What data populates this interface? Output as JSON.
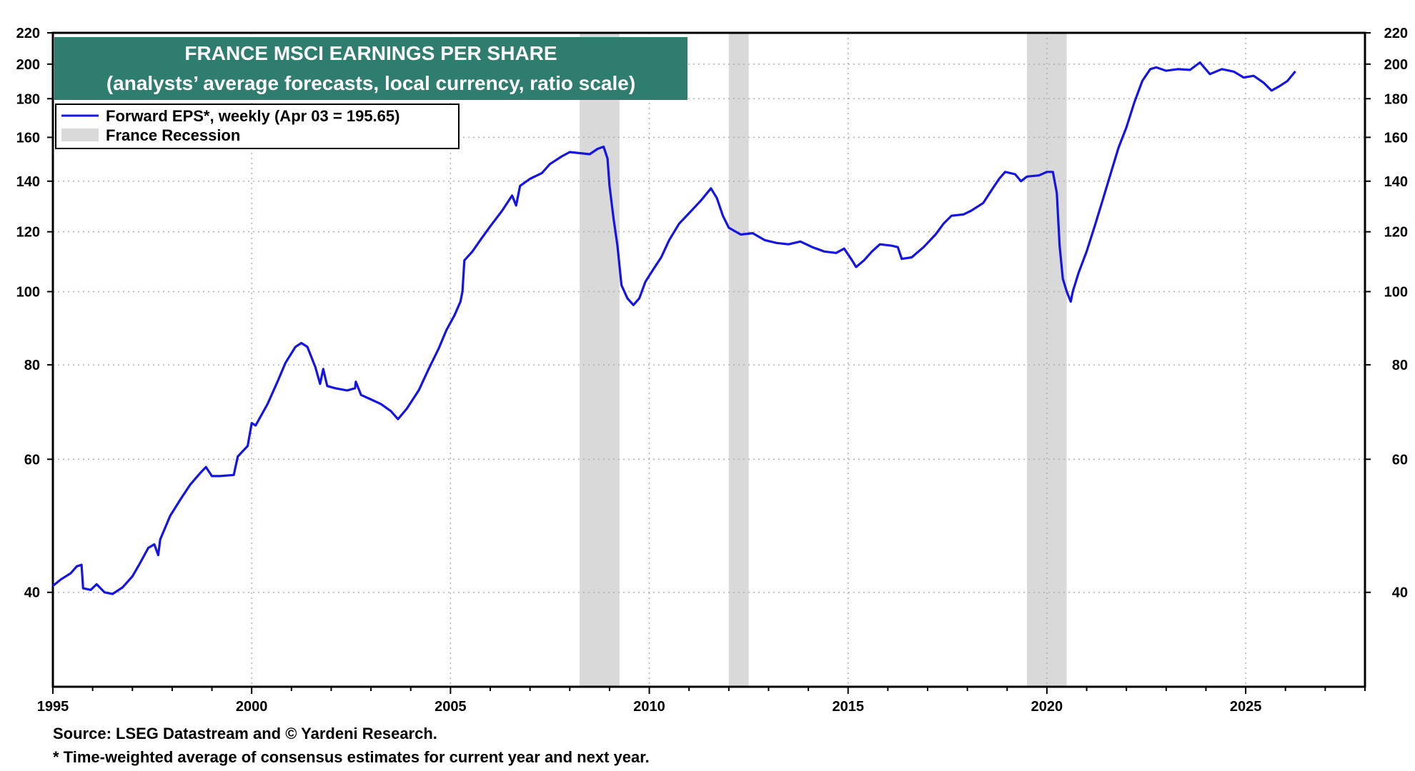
{
  "footnotes": {
    "source": "Source: LSEG Datastream and © Yardeni Research.",
    "note": "* Time-weighted average of consensus estimates for current year and next year."
  },
  "colors": {
    "series": "#1414e6",
    "recession": "#d9d9d9",
    "title_bg": "#2e7d6e",
    "title_text": "#ffffff",
    "grid": "#b0b0b0"
  },
  "chart_data": {
    "type": "line",
    "title": "FRANCE MSCI EARNINGS PER SHARE",
    "subtitle": "(analysts’ average forecasts, local currency, ratio scale)",
    "xlabel": "",
    "ylabel": "",
    "y_scale": "log",
    "xlim": [
      1995,
      2028
    ],
    "ylim": [
      30,
      220
    ],
    "x_ticks": [
      1995,
      2000,
      2005,
      2010,
      2015,
      2020,
      2025
    ],
    "y_ticks": [
      40,
      60,
      80,
      100,
      120,
      140,
      160,
      180,
      200,
      220
    ],
    "y_ticks_right": [
      40,
      60,
      80,
      100,
      120,
      140,
      160,
      180,
      200,
      220
    ],
    "grid": true,
    "legend_position": "top-left",
    "legend": [
      {
        "label": "Forward EPS*, weekly (Apr 03 = 195.65)",
        "kind": "line"
      },
      {
        "label": "France Recession",
        "kind": "box"
      }
    ],
    "recessions": [
      {
        "start": 2008.25,
        "end": 2009.25
      },
      {
        "start": 2012.0,
        "end": 2012.5
      },
      {
        "start": 2019.5,
        "end": 2020.5
      }
    ],
    "series": [
      {
        "name": "Forward EPS*, weekly",
        "points": [
          [
            1995.0,
            40.8
          ],
          [
            1995.2,
            41.6
          ],
          [
            1995.45,
            42.4
          ],
          [
            1995.6,
            43.3
          ],
          [
            1995.72,
            43.5
          ],
          [
            1995.76,
            40.5
          ],
          [
            1995.95,
            40.3
          ],
          [
            1996.1,
            41.0
          ],
          [
            1996.3,
            40.0
          ],
          [
            1996.5,
            39.8
          ],
          [
            1996.75,
            40.6
          ],
          [
            1997.0,
            42.0
          ],
          [
            1997.2,
            43.8
          ],
          [
            1997.4,
            45.8
          ],
          [
            1997.55,
            46.3
          ],
          [
            1997.65,
            44.8
          ],
          [
            1997.7,
            47.0
          ],
          [
            1997.95,
            50.5
          ],
          [
            1998.2,
            53.0
          ],
          [
            1998.45,
            55.5
          ],
          [
            1998.7,
            57.5
          ],
          [
            1998.85,
            58.6
          ],
          [
            1999.0,
            57.0
          ],
          [
            1999.2,
            57.0
          ],
          [
            1999.55,
            57.2
          ],
          [
            1999.65,
            60.5
          ],
          [
            1999.9,
            62.5
          ],
          [
            2000.0,
            67.0
          ],
          [
            2000.1,
            66.5
          ],
          [
            2000.4,
            71.0
          ],
          [
            2000.65,
            76.0
          ],
          [
            2000.85,
            80.5
          ],
          [
            2001.1,
            84.5
          ],
          [
            2001.25,
            85.5
          ],
          [
            2001.4,
            84.5
          ],
          [
            2001.6,
            79.5
          ],
          [
            2001.72,
            75.5
          ],
          [
            2001.8,
            79.0
          ],
          [
            2001.9,
            75.0
          ],
          [
            2002.1,
            74.5
          ],
          [
            2002.4,
            74.0
          ],
          [
            2002.6,
            74.5
          ],
          [
            2002.62,
            76.0
          ],
          [
            2002.75,
            73.0
          ],
          [
            2003.0,
            72.0
          ],
          [
            2003.25,
            71.0
          ],
          [
            2003.5,
            69.5
          ],
          [
            2003.68,
            67.8
          ],
          [
            2003.9,
            70.0
          ],
          [
            2004.2,
            74.0
          ],
          [
            2004.45,
            79.0
          ],
          [
            2004.7,
            84.0
          ],
          [
            2004.9,
            89.0
          ],
          [
            2005.1,
            93.0
          ],
          [
            2005.25,
            97.0
          ],
          [
            2005.3,
            100.0
          ],
          [
            2005.35,
            110.0
          ],
          [
            2005.55,
            113.0
          ],
          [
            2005.75,
            117.0
          ],
          [
            2006.0,
            122.0
          ],
          [
            2006.3,
            128.0
          ],
          [
            2006.55,
            134.0
          ],
          [
            2006.65,
            130.0
          ],
          [
            2006.75,
            138.0
          ],
          [
            2007.0,
            141.0
          ],
          [
            2007.3,
            143.5
          ],
          [
            2007.5,
            147.5
          ],
          [
            2007.8,
            151.0
          ],
          [
            2008.0,
            153.0
          ],
          [
            2008.25,
            152.5
          ],
          [
            2008.5,
            152.0
          ],
          [
            2008.7,
            154.5
          ],
          [
            2008.85,
            155.5
          ],
          [
            2008.95,
            150.0
          ],
          [
            2009.0,
            138.0
          ],
          [
            2009.1,
            125.0
          ],
          [
            2009.2,
            115.0
          ],
          [
            2009.3,
            102.0
          ],
          [
            2009.45,
            98.0
          ],
          [
            2009.6,
            96.0
          ],
          [
            2009.75,
            98.0
          ],
          [
            2009.9,
            103.0
          ],
          [
            2010.1,
            107.0
          ],
          [
            2010.3,
            111.0
          ],
          [
            2010.5,
            117.0
          ],
          [
            2010.75,
            123.0
          ],
          [
            2011.0,
            127.0
          ],
          [
            2011.3,
            132.0
          ],
          [
            2011.55,
            137.0
          ],
          [
            2011.7,
            133.0
          ],
          [
            2011.85,
            126.0
          ],
          [
            2012.0,
            121.5
          ],
          [
            2012.3,
            119.0
          ],
          [
            2012.6,
            119.5
          ],
          [
            2012.9,
            117.0
          ],
          [
            2013.2,
            116.0
          ],
          [
            2013.5,
            115.5
          ],
          [
            2013.8,
            116.5
          ],
          [
            2014.1,
            114.5
          ],
          [
            2014.4,
            113.0
          ],
          [
            2014.7,
            112.5
          ],
          [
            2014.9,
            114.0
          ],
          [
            2015.1,
            110.0
          ],
          [
            2015.2,
            107.8
          ],
          [
            2015.4,
            110.0
          ],
          [
            2015.6,
            113.0
          ],
          [
            2015.8,
            115.5
          ],
          [
            2016.1,
            115.0
          ],
          [
            2016.25,
            114.5
          ],
          [
            2016.35,
            110.5
          ],
          [
            2016.6,
            111.0
          ],
          [
            2016.9,
            114.5
          ],
          [
            2017.2,
            119.0
          ],
          [
            2017.4,
            123.0
          ],
          [
            2017.6,
            126.0
          ],
          [
            2017.9,
            126.5
          ],
          [
            2018.1,
            128.0
          ],
          [
            2018.4,
            131.0
          ],
          [
            2018.6,
            136.0
          ],
          [
            2018.8,
            141.0
          ],
          [
            2018.95,
            144.0
          ],
          [
            2019.2,
            143.0
          ],
          [
            2019.35,
            140.0
          ],
          [
            2019.5,
            142.0
          ],
          [
            2019.8,
            142.5
          ],
          [
            2020.0,
            144.0
          ],
          [
            2020.15,
            144.0
          ],
          [
            2020.25,
            135.0
          ],
          [
            2020.32,
            115.0
          ],
          [
            2020.4,
            104.0
          ],
          [
            2020.5,
            100.0
          ],
          [
            2020.6,
            97.0
          ],
          [
            2020.65,
            100.0
          ],
          [
            2020.8,
            106.0
          ],
          [
            2021.0,
            113.0
          ],
          [
            2021.2,
            122.0
          ],
          [
            2021.4,
            132.0
          ],
          [
            2021.6,
            143.0
          ],
          [
            2021.8,
            155.0
          ],
          [
            2022.0,
            165.0
          ],
          [
            2022.2,
            178.0
          ],
          [
            2022.4,
            190.0
          ],
          [
            2022.6,
            197.0
          ],
          [
            2022.75,
            198.0
          ],
          [
            2023.0,
            196.0
          ],
          [
            2023.3,
            197.0
          ],
          [
            2023.6,
            196.5
          ],
          [
            2023.85,
            201.0
          ],
          [
            2024.1,
            194.0
          ],
          [
            2024.4,
            197.0
          ],
          [
            2024.7,
            195.5
          ],
          [
            2024.95,
            192.0
          ],
          [
            2025.2,
            193.0
          ],
          [
            2025.45,
            189.0
          ],
          [
            2025.65,
            184.5
          ],
          [
            2025.85,
            187.0
          ],
          [
            2026.05,
            190.0
          ],
          [
            2026.25,
            195.65
          ]
        ]
      }
    ]
  }
}
